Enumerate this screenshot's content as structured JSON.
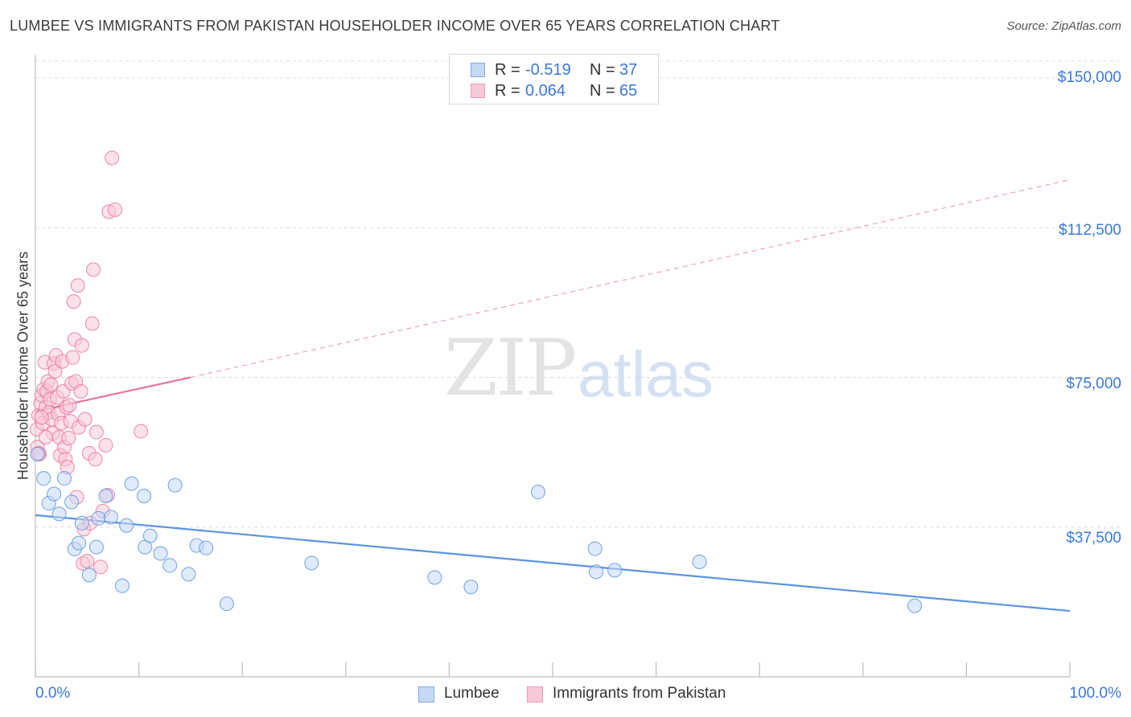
{
  "title": "LUMBEE VS IMMIGRANTS FROM PAKISTAN HOUSEHOLDER INCOME OVER 65 YEARS CORRELATION CHART",
  "source": "Source: ZipAtlas.com",
  "watermark": {
    "zip": "ZIP",
    "atlas": "atlas"
  },
  "legend": {
    "rows": [
      {
        "r_label": "R =",
        "r_value": "-0.519",
        "n_label": "N =",
        "n_value": "37"
      },
      {
        "r_label": "R =",
        "r_value": "0.064",
        "n_label": "N =",
        "n_value": "65"
      }
    ]
  },
  "colors": {
    "lumbee": "#5b93e0",
    "lumbee_fill": "#c5d9f5",
    "pakistan": "#e9769a",
    "pakistan_fill": "#f7c9d7",
    "axis_text": "#3b78d8"
  },
  "chart_data": {
    "type": "scatter",
    "title": "LUMBEE VS IMMIGRANTS FROM PAKISTAN HOUSEHOLDER INCOME OVER 65 YEARS CORRELATION CHART",
    "xlabel": "",
    "ylabel": "Householder Income Over 65 years",
    "xlim": [
      0,
      100
    ],
    "ylim": [
      0,
      157000
    ],
    "x_tick_labels": [
      "0.0%",
      "100.0%"
    ],
    "y_tick_labels": [
      "$37,500",
      "$75,000",
      "$112,500",
      "$150,000"
    ],
    "y_ticks": [
      37500,
      75000,
      112500,
      150000
    ],
    "grid": true,
    "legend_position": "top-center",
    "series": [
      {
        "name": "Lumbee",
        "color": "#5b93e0",
        "trend": {
          "x": [
            0,
            100
          ],
          "y": [
            40500,
            16500
          ],
          "style": "solid"
        },
        "points": [
          [
            0.2,
            55800
          ],
          [
            0.8,
            49700
          ],
          [
            1.3,
            43500
          ],
          [
            1.8,
            45800
          ],
          [
            2.3,
            40800
          ],
          [
            2.8,
            49700
          ],
          [
            3.5,
            43800
          ],
          [
            3.8,
            32000
          ],
          [
            4.2,
            33500
          ],
          [
            4.5,
            38500
          ],
          [
            5.2,
            25500
          ],
          [
            5.9,
            32500
          ],
          [
            6.1,
            39700
          ],
          [
            6.8,
            45300
          ],
          [
            7.3,
            40000
          ],
          [
            8.4,
            22800
          ],
          [
            8.8,
            37900
          ],
          [
            9.3,
            48400
          ],
          [
            10.5,
            45300
          ],
          [
            10.6,
            32500
          ],
          [
            11.1,
            35300
          ],
          [
            12.1,
            30900
          ],
          [
            13.0,
            27900
          ],
          [
            13.5,
            48000
          ],
          [
            14.8,
            25700
          ],
          [
            15.6,
            32900
          ],
          [
            16.5,
            32300
          ],
          [
            18.5,
            18300
          ],
          [
            26.7,
            28500
          ],
          [
            38.6,
            24900
          ],
          [
            42.1,
            22500
          ],
          [
            48.6,
            46300
          ],
          [
            54.1,
            32100
          ],
          [
            54.2,
            26300
          ],
          [
            56.0,
            26700
          ],
          [
            64.2,
            28800
          ],
          [
            85.0,
            17800
          ]
        ]
      },
      {
        "name": "Immigrants from Pakistan",
        "color": "#e9769a",
        "trend": {
          "x": [
            0,
            15
          ],
          "y": [
            66500,
            75000
          ],
          "style": "solid",
          "extend_to": [
            100,
            124500
          ],
          "extend_style": "dashed"
        },
        "points": [
          [
            0.1,
            62000
          ],
          [
            0.2,
            57500
          ],
          [
            0.3,
            65500
          ],
          [
            0.4,
            55800
          ],
          [
            0.5,
            68500
          ],
          [
            0.6,
            70500
          ],
          [
            0.7,
            63500
          ],
          [
            0.8,
            72000
          ],
          [
            0.9,
            78800
          ],
          [
            1.0,
            67500
          ],
          [
            1.1,
            71500
          ],
          [
            1.2,
            74000
          ],
          [
            1.3,
            66200
          ],
          [
            1.4,
            69500
          ],
          [
            1.5,
            73200
          ],
          [
            1.6,
            64500
          ],
          [
            1.7,
            61000
          ],
          [
            1.8,
            78500
          ],
          [
            1.9,
            76500
          ],
          [
            2.0,
            80500
          ],
          [
            2.1,
            70000
          ],
          [
            2.2,
            65800
          ],
          [
            2.3,
            60000
          ],
          [
            2.4,
            55500
          ],
          [
            2.5,
            63500
          ],
          [
            2.6,
            79000
          ],
          [
            2.7,
            71500
          ],
          [
            2.8,
            57500
          ],
          [
            2.9,
            54500
          ],
          [
            3.0,
            67500
          ],
          [
            3.1,
            52500
          ],
          [
            3.2,
            59800
          ],
          [
            3.3,
            68000
          ],
          [
            3.4,
            64000
          ],
          [
            3.5,
            73500
          ],
          [
            3.6,
            80000
          ],
          [
            3.7,
            94000
          ],
          [
            3.8,
            84500
          ],
          [
            3.9,
            74000
          ],
          [
            4.0,
            45000
          ],
          [
            4.1,
            98000
          ],
          [
            4.2,
            62500
          ],
          [
            4.4,
            71500
          ],
          [
            4.5,
            83000
          ],
          [
            4.6,
            28400
          ],
          [
            4.7,
            37000
          ],
          [
            4.8,
            64500
          ],
          [
            5.0,
            29000
          ],
          [
            5.2,
            56000
          ],
          [
            5.3,
            38500
          ],
          [
            5.5,
            88500
          ],
          [
            5.6,
            102000
          ],
          [
            5.8,
            54500
          ],
          [
            5.9,
            61300
          ],
          [
            6.3,
            27500
          ],
          [
            6.5,
            41500
          ],
          [
            6.8,
            58000
          ],
          [
            7.0,
            45500
          ],
          [
            7.1,
            116500
          ],
          [
            7.4,
            130000
          ],
          [
            7.7,
            117000
          ],
          [
            10.2,
            61500
          ],
          [
            0.3,
            56000
          ],
          [
            0.6,
            65000
          ],
          [
            1.0,
            60000
          ]
        ]
      }
    ]
  },
  "bottom_legend": {
    "lumbee": "Lumbee",
    "pakistan": "Immigrants from Pakistan"
  },
  "axis_labels": {
    "x_left": "0.0%",
    "x_right": "100.0%"
  }
}
